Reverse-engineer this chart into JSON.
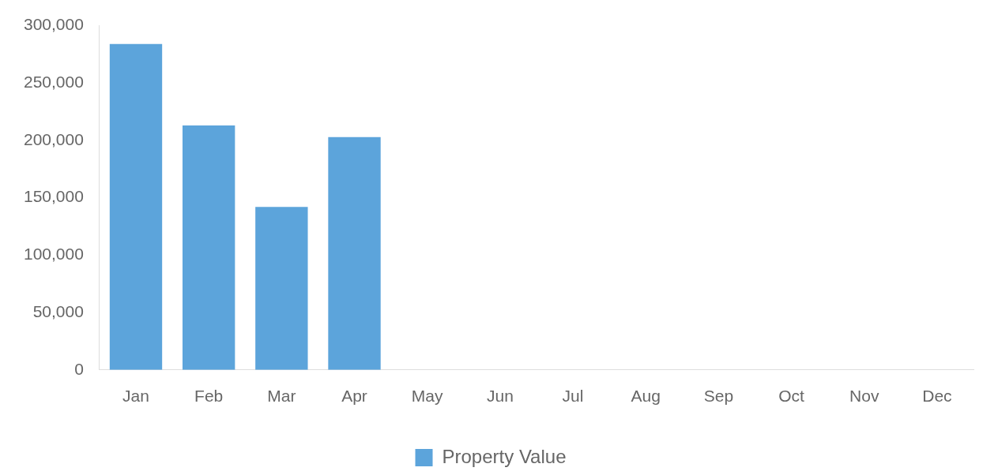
{
  "chart_data": {
    "type": "bar",
    "categories": [
      "Jan",
      "Feb",
      "Mar",
      "Apr",
      "May",
      "Jun",
      "Jul",
      "Aug",
      "Sep",
      "Oct",
      "Nov",
      "Dec"
    ],
    "series": [
      {
        "name": "Property Value",
        "color": "#5ca4db",
        "values": [
          284000,
          213000,
          142000,
          203000,
          null,
          null,
          null,
          null,
          null,
          null,
          null,
          null
        ]
      }
    ],
    "ylim": [
      0,
      300000
    ],
    "yticks": [
      {
        "value": 0,
        "label": "0"
      },
      {
        "value": 50000,
        "label": "50,000"
      },
      {
        "value": 100000,
        "label": "100,000"
      },
      {
        "value": 150000,
        "label": "150,000"
      },
      {
        "value": 200000,
        "label": "200,000"
      },
      {
        "value": 250000,
        "label": "250,000"
      },
      {
        "value": 300000,
        "label": "300,000"
      }
    ],
    "grid": false,
    "legend": "bottom"
  }
}
